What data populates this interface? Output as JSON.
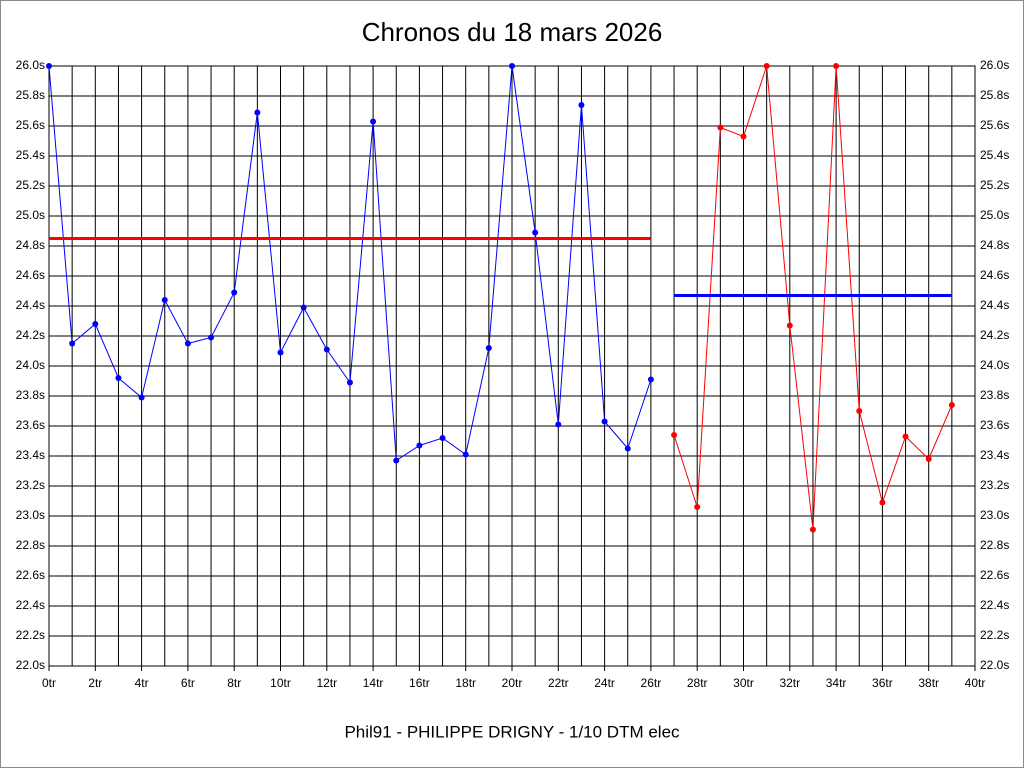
{
  "chart_data": {
    "type": "line",
    "title": "Chronos du 18 mars 2026",
    "caption": "Phil91 - PHILIPPE DRIGNY - 1/10 DTM elec",
    "xlim": [
      0,
      40
    ],
    "xticks": [
      {
        "value": 0,
        "label": "0tr"
      },
      {
        "value": 2,
        "label": "2tr"
      },
      {
        "value": 4,
        "label": "4tr"
      },
      {
        "value": 6,
        "label": "6tr"
      },
      {
        "value": 8,
        "label": "8tr"
      },
      {
        "value": 10,
        "label": "10tr"
      },
      {
        "value": 12,
        "label": "12tr"
      },
      {
        "value": 14,
        "label": "14tr"
      },
      {
        "value": 16,
        "label": "16tr"
      },
      {
        "value": 18,
        "label": "18tr"
      },
      {
        "value": 20,
        "label": "20tr"
      },
      {
        "value": 22,
        "label": "22tr"
      },
      {
        "value": 24,
        "label": "24tr"
      },
      {
        "value": 26,
        "label": "26tr"
      },
      {
        "value": 28,
        "label": "28tr"
      },
      {
        "value": 30,
        "label": "30tr"
      },
      {
        "value": 32,
        "label": "32tr"
      },
      {
        "value": 34,
        "label": "34tr"
      },
      {
        "value": 36,
        "label": "36tr"
      },
      {
        "value": 38,
        "label": "38tr"
      },
      {
        "value": 40,
        "label": "40tr"
      }
    ],
    "minor_xticks": [
      1,
      3,
      5,
      7,
      9,
      11,
      13,
      15,
      17,
      19,
      21,
      23,
      25,
      27,
      29,
      31,
      33,
      35,
      37,
      39
    ],
    "ylim": [
      22.0,
      26.0
    ],
    "yticks": [
      {
        "value": 22.0,
        "label": "22.0s"
      },
      {
        "value": 22.2,
        "label": "22.2s"
      },
      {
        "value": 22.4,
        "label": "22.4s"
      },
      {
        "value": 22.6,
        "label": "22.6s"
      },
      {
        "value": 22.8,
        "label": "22.8s"
      },
      {
        "value": 23.0,
        "label": "23.0s"
      },
      {
        "value": 23.2,
        "label": "23.2s"
      },
      {
        "value": 23.4,
        "label": "23.4s"
      },
      {
        "value": 23.6,
        "label": "23.6s"
      },
      {
        "value": 23.8,
        "label": "23.8s"
      },
      {
        "value": 24.0,
        "label": "24.0s"
      },
      {
        "value": 24.2,
        "label": "24.2s"
      },
      {
        "value": 24.4,
        "label": "24.4s"
      },
      {
        "value": 24.6,
        "label": "24.6s"
      },
      {
        "value": 24.8,
        "label": "24.8s"
      },
      {
        "value": 25.0,
        "label": "25.0s"
      },
      {
        "value": 25.2,
        "label": "25.2s"
      },
      {
        "value": 25.4,
        "label": "25.4s"
      },
      {
        "value": 25.6,
        "label": "25.6s"
      },
      {
        "value": 25.8,
        "label": "25.8s"
      },
      {
        "value": 26.0,
        "label": "26.0s"
      }
    ],
    "grid": true,
    "series": [
      {
        "color": "#0000ff",
        "markers": true,
        "x": [
          0,
          1,
          2,
          3,
          4,
          5,
          6,
          7,
          8,
          9,
          10,
          11,
          12,
          13,
          14,
          15,
          16,
          17,
          18,
          19,
          20,
          21,
          22,
          23,
          24,
          25,
          26
        ],
        "values": [
          26.0,
          24.15,
          24.28,
          23.92,
          23.79,
          24.44,
          24.15,
          24.19,
          24.49,
          25.69,
          24.09,
          24.39,
          24.11,
          23.89,
          25.63,
          23.37,
          23.47,
          23.52,
          23.41,
          24.12,
          26.0,
          24.89,
          23.61,
          25.74,
          23.63,
          23.45,
          23.91
        ]
      },
      {
        "color": "#ff0000",
        "markers": true,
        "x": [
          27,
          28,
          29,
          30,
          31,
          32,
          33,
          34,
          35,
          36,
          37,
          38,
          39
        ],
        "values": [
          23.54,
          23.06,
          25.59,
          25.53,
          26.0,
          24.27,
          22.91,
          26.0,
          23.7,
          23.09,
          23.53,
          23.38,
          23.74
        ]
      },
      {
        "color": "#ff0000",
        "markers": false,
        "x": [
          0,
          26
        ],
        "values": [
          24.85,
          24.85
        ]
      },
      {
        "color": "#0000ff",
        "markers": false,
        "x": [
          27,
          39
        ],
        "values": [
          24.47,
          24.47
        ]
      }
    ]
  }
}
